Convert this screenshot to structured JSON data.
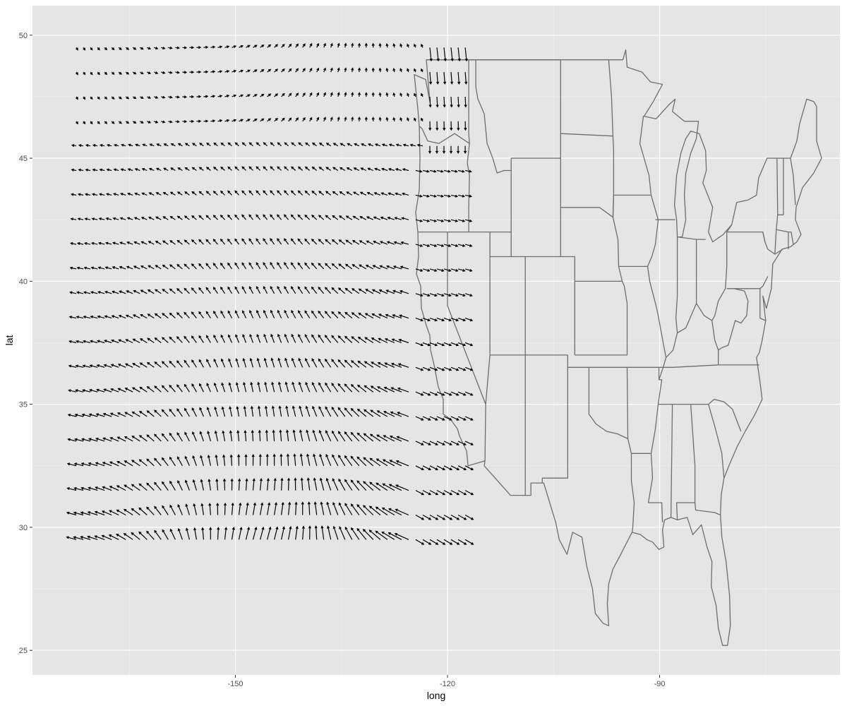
{
  "chart_data": {
    "type": "vector-field map",
    "xlabel": "long",
    "ylabel": "lat",
    "xlim": [
      -178.7,
      -64.5
    ],
    "ylim": [
      24.0,
      51.2
    ],
    "x_ticks": [
      -150,
      -120,
      -90
    ],
    "y_ticks": [
      25,
      30,
      35,
      40,
      45,
      50
    ],
    "x_minor_ticks": [
      -165,
      -135,
      -105,
      -75
    ],
    "y_minor_ticks": [
      27.5,
      32.5,
      37.5,
      42.5,
      47.5
    ],
    "grid": true,
    "panel_background": "#e5e5e5",
    "gridline_color": "#ffffff",
    "state_outline_color": "#6e6e6e",
    "arrow_color": "#000000",
    "vector_field": {
      "lat_rows": [
        49.5,
        48.5,
        47.5,
        46.5,
        45.5,
        44.5,
        43.5,
        42.5,
        41.5,
        40.5,
        39.5,
        38.5,
        37.5,
        36.5,
        35.5,
        34.5,
        33.5,
        32.5,
        31.5,
        30.5,
        29.5
      ],
      "lon_start": -172.5,
      "lon_end": -117.5,
      "lon_step": 1.0,
      "direction_regimes": [
        "south-east (north edge)",
        "westward (mid latitudes)",
        "west/north-west (south edge)",
        "south-south-east near -118"
      ],
      "max_speed_region": "south-west edge near 30N"
    },
    "state_boundaries": "contiguous United States (49 lower states)"
  }
}
